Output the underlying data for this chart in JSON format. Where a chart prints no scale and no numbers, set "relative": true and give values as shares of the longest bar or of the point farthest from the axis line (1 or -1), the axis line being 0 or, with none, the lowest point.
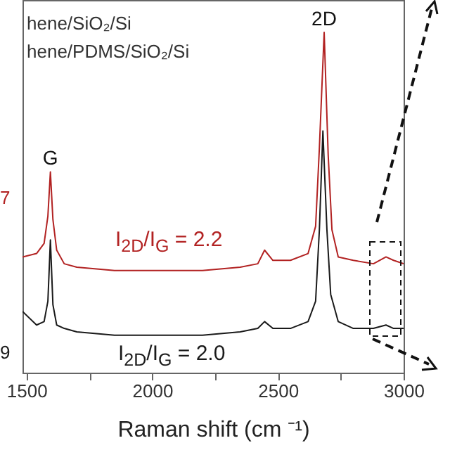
{
  "chart_data": {
    "type": "line",
    "relative": true,
    "xlabel": "Raman shift (cm ⁻¹)",
    "xlim": [
      1484,
      3000
    ],
    "xticks": [
      1500,
      {
        "value": 1750,
        "label": null
      },
      2000,
      {
        "value": 2250,
        "label": null
      },
      2500,
      {
        "value": 2750,
        "label": null
      },
      3000
    ],
    "grid": false,
    "marker": "none",
    "line_style": "solid",
    "series": [
      {
        "color": "#1a1a1a",
        "x": [
          1484,
          1540,
          1570,
          1585,
          1595,
          1605,
          1620,
          1650,
          1700,
          1850,
          2000,
          2200,
          2350,
          2420,
          2447,
          2480,
          2550,
          2620,
          2650,
          2665,
          2679,
          2695,
          2710,
          2740,
          2800,
          2880,
          2930,
          2960,
          3000
        ],
        "values": [
          0.18,
          0.14,
          0.15,
          0.21,
          0.39,
          0.2,
          0.14,
          0.13,
          0.12,
          0.11,
          0.11,
          0.11,
          0.12,
          0.13,
          0.15,
          0.13,
          0.13,
          0.15,
          0.21,
          0.42,
          0.71,
          0.42,
          0.23,
          0.15,
          0.13,
          0.13,
          0.14,
          0.13,
          0.13
        ]
      },
      {
        "color": "#b22222",
        "x": [
          1484,
          1540,
          1570,
          1585,
          1595,
          1605,
          1620,
          1650,
          1700,
          1850,
          2000,
          2200,
          2350,
          2420,
          2447,
          2480,
          2550,
          2620,
          2650,
          2665,
          2684,
          2700,
          2715,
          2740,
          2800,
          2880,
          2930,
          2960,
          3000
        ],
        "values": [
          0.34,
          0.35,
          0.38,
          0.46,
          0.59,
          0.45,
          0.36,
          0.32,
          0.31,
          0.3,
          0.3,
          0.3,
          0.31,
          0.32,
          0.36,
          0.33,
          0.33,
          0.35,
          0.43,
          0.66,
          1.0,
          0.64,
          0.42,
          0.34,
          0.33,
          0.32,
          0.34,
          0.33,
          0.32
        ]
      }
    ],
    "annotations": [
      {
        "text": "G",
        "x": 1595,
        "y": 0.59
      },
      {
        "text": "2D",
        "x": 2684,
        "y": 1.0
      },
      "hene/SiO₂/Si",
      "hene/PDMS/SiO₂/Si",
      "7",
      "9",
      "I$_{2D}$/I$_{G}$ = 2.2",
      "I$_{2D}$/I$_{G}$ = 2.0"
    ]
  }
}
